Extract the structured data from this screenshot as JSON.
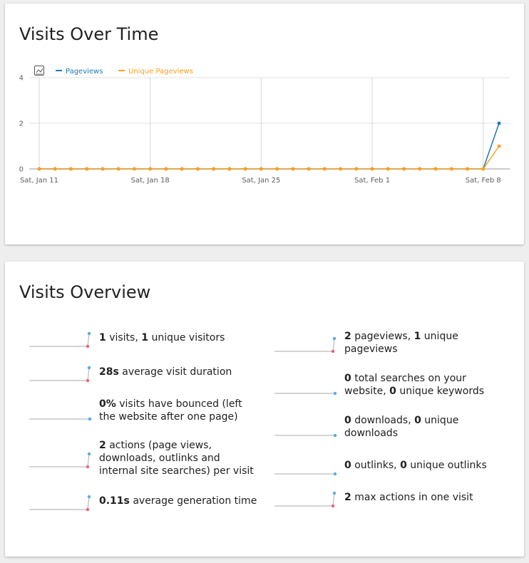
{
  "visits_over_time": {
    "title": "Visits Over Time",
    "legend": {
      "icon": "chart-type-icon",
      "series": [
        {
          "name": "Pageviews",
          "color": "#1f78b4"
        },
        {
          "name": "Unique Pageviews",
          "color": "#ff9f1c"
        }
      ]
    }
  },
  "chart_data": {
    "type": "line",
    "x": [
      "2025-01-11",
      "2025-01-12",
      "2025-01-13",
      "2025-01-14",
      "2025-01-15",
      "2025-01-16",
      "2025-01-17",
      "2025-01-18",
      "2025-01-19",
      "2025-01-20",
      "2025-01-21",
      "2025-01-22",
      "2025-01-23",
      "2025-01-24",
      "2025-01-25",
      "2025-01-26",
      "2025-01-27",
      "2025-01-28",
      "2025-01-29",
      "2025-01-30",
      "2025-01-31",
      "2025-02-01",
      "2025-02-02",
      "2025-02-03",
      "2025-02-04",
      "2025-02-05",
      "2025-02-06",
      "2025-02-07",
      "2025-02-08",
      "2025-02-09"
    ],
    "x_tick_labels": [
      "Sat, Jan 11",
      "Sat, Jan 18",
      "Sat, Jan 25",
      "Sat, Feb 1",
      "Sat, Feb 8"
    ],
    "y_ticks": [
      "0",
      "2",
      "4"
    ],
    "ylim": [
      0,
      4
    ],
    "series": [
      {
        "name": "Pageviews",
        "color": "#1f78b4",
        "values": [
          0,
          0,
          0,
          0,
          0,
          0,
          0,
          0,
          0,
          0,
          0,
          0,
          0,
          0,
          0,
          0,
          0,
          0,
          0,
          0,
          0,
          0,
          0,
          0,
          0,
          0,
          0,
          0,
          0,
          2
        ]
      },
      {
        "name": "Unique Pageviews",
        "color": "#ff9f1c",
        "values": [
          0,
          0,
          0,
          0,
          0,
          0,
          0,
          0,
          0,
          0,
          0,
          0,
          0,
          0,
          0,
          0,
          0,
          0,
          0,
          0,
          0,
          0,
          0,
          0,
          0,
          0,
          0,
          0,
          0,
          1
        ]
      }
    ],
    "grid": true,
    "legend_position": "top-left"
  },
  "visits_overview": {
    "title": "Visits Overview",
    "left": [
      {
        "id": "visits",
        "spark": "red-end",
        "parts": [
          {
            "b": "1"
          },
          {
            "t": " visits, "
          },
          {
            "b": "1"
          },
          {
            "t": " unique visitors"
          }
        ]
      },
      {
        "id": "duration",
        "spark": "red-end",
        "parts": [
          {
            "b": "28s"
          },
          {
            "t": " average visit duration"
          }
        ]
      },
      {
        "id": "bounce",
        "spark": "flat",
        "parts": [
          {
            "b": "0%"
          },
          {
            "t": " visits have bounced (left the website after one page)"
          }
        ]
      },
      {
        "id": "actions",
        "spark": "red-end",
        "parts": [
          {
            "b": "2"
          },
          {
            "t": " actions (page views, downloads, outlinks and internal site searches) per visit"
          }
        ]
      },
      {
        "id": "generation",
        "spark": "red-end",
        "parts": [
          {
            "b": "0.11s"
          },
          {
            "t": " average generation time"
          }
        ]
      }
    ],
    "right": [
      {
        "id": "pageviews",
        "spark": "red-end",
        "parts": [
          {
            "b": "2"
          },
          {
            "t": " pageviews, "
          },
          {
            "b": "1"
          },
          {
            "t": " unique pageviews"
          }
        ]
      },
      {
        "id": "searches",
        "spark": "flat",
        "parts": [
          {
            "b": "0"
          },
          {
            "t": " total searches on your website, "
          },
          {
            "b": "0"
          },
          {
            "t": " unique keywords"
          }
        ]
      },
      {
        "id": "downloads",
        "spark": "flat",
        "parts": [
          {
            "b": "0"
          },
          {
            "t": " downloads, "
          },
          {
            "b": "0"
          },
          {
            "t": " unique downloads"
          }
        ]
      },
      {
        "id": "outlinks",
        "spark": "flat",
        "parts": [
          {
            "b": "0"
          },
          {
            "t": " outlinks, "
          },
          {
            "b": "0"
          },
          {
            "t": " unique outlinks"
          }
        ]
      },
      {
        "id": "max-actions",
        "spark": "red-end",
        "parts": [
          {
            "b": "2"
          },
          {
            "t": " max actions in one visit"
          }
        ]
      }
    ],
    "spark_colors": {
      "line": "#bbbbbb",
      "end_high": "#5ba9e8",
      "end_low": "#e8637a"
    }
  }
}
